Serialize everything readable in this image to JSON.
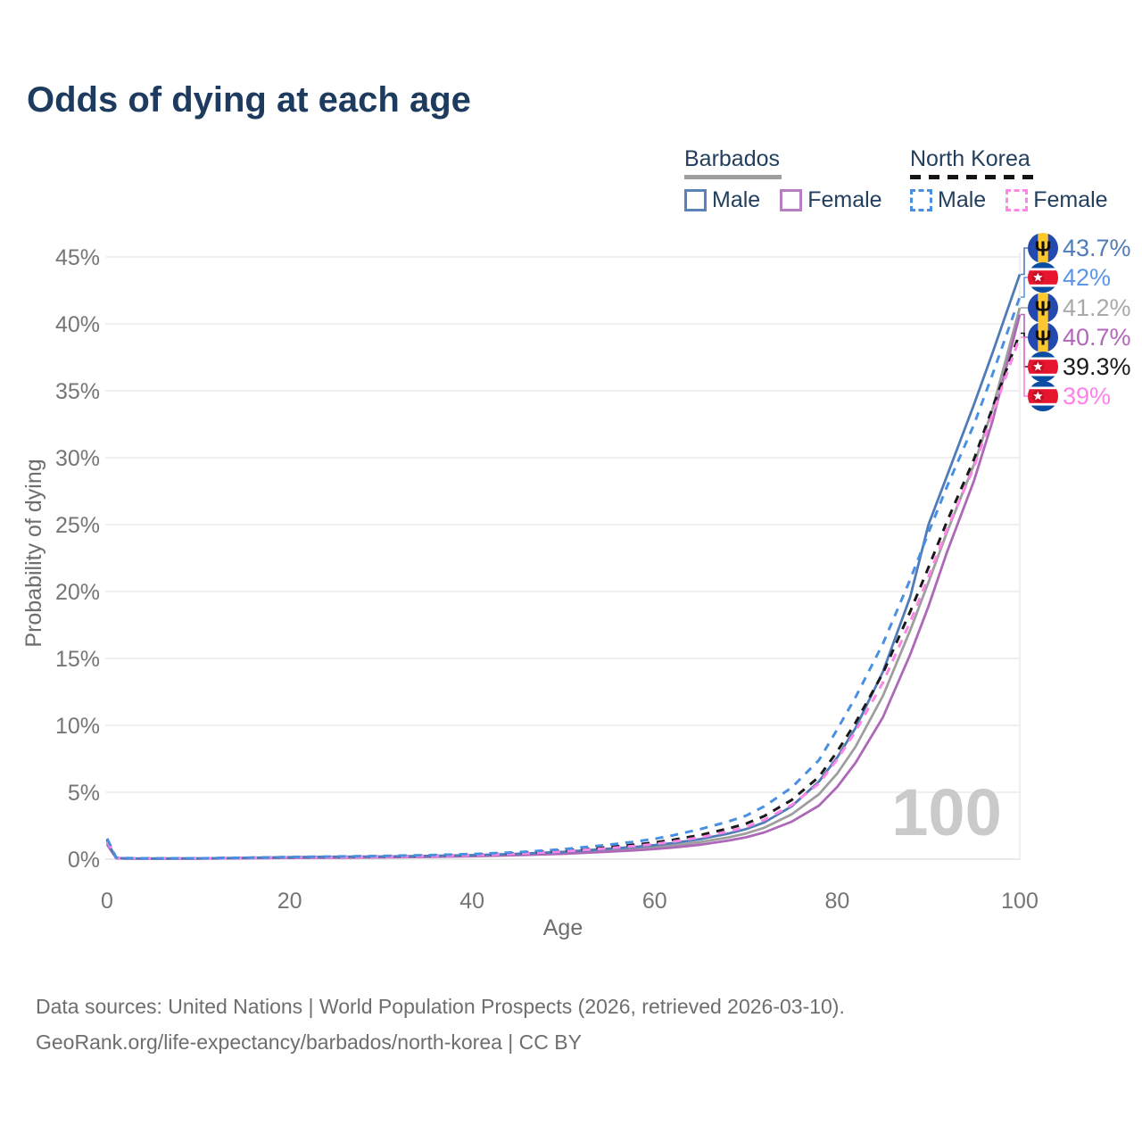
{
  "title": "Odds of dying at each age",
  "watermark": "100",
  "legend": {
    "groups": [
      {
        "label": "Barbados",
        "line_style": "solid",
        "underline_color": "#9e9e9e",
        "items": [
          {
            "label": "Male",
            "color": "#4f7cb8"
          },
          {
            "label": "Female",
            "color": "#b273bc"
          }
        ]
      },
      {
        "label": "North Korea",
        "line_style": "dashed",
        "underline_color": "#141414",
        "items": [
          {
            "label": "Male",
            "color": "#4a90e2"
          },
          {
            "label": "Female",
            "color": "#ff85e6"
          }
        ]
      }
    ]
  },
  "footer": {
    "line1": "Data sources: United Nations | World Population Prospects (2026, retrieved 2026-03-10).",
    "line2": "GeoRank.org/life-expectancy/barbados/north-korea | CC BY"
  },
  "chart_data": {
    "type": "line",
    "title": "Odds of dying at each age",
    "xlabel": "Age",
    "ylabel": "Probability of dying",
    "xlim": [
      0,
      100
    ],
    "ylim_percent": [
      0,
      46
    ],
    "grid": "horizontal",
    "legend_position": "top-right",
    "x_tick_values": [
      0,
      20,
      40,
      60,
      80,
      100
    ],
    "y_tick_labels": [
      "0%",
      "5%",
      "10%",
      "15%",
      "20%",
      "25%",
      "30%",
      "35%",
      "40%",
      "45%"
    ],
    "x": [
      0,
      1,
      2,
      5,
      10,
      15,
      20,
      25,
      30,
      35,
      40,
      45,
      50,
      55,
      58,
      60,
      62,
      65,
      68,
      70,
      72,
      75,
      78,
      80,
      82,
      85,
      88,
      90,
      92,
      95,
      97,
      100
    ],
    "series": [
      {
        "name": "Barbados Male",
        "country": "Barbados",
        "sex": "male",
        "color": "#4f7cb8",
        "dash": false,
        "end_label": "43.7%",
        "label_color": "#4f7cb8",
        "flag": "barbados",
        "values": [
          1.3,
          0.09,
          0.06,
          0.05,
          0.06,
          0.1,
          0.15,
          0.18,
          0.2,
          0.24,
          0.3,
          0.4,
          0.55,
          0.78,
          0.92,
          1.05,
          1.2,
          1.5,
          1.9,
          2.25,
          2.75,
          3.95,
          5.8,
          7.6,
          9.8,
          14.0,
          19.6,
          25.0,
          28.6,
          34.0,
          37.8,
          43.7
        ]
      },
      {
        "name": "North Korea Male",
        "country": "North Korea",
        "sex": "male",
        "color": "#4a90e2",
        "dash": true,
        "end_label": "42%",
        "label_color": "#5b95e8",
        "flag": "north-korea",
        "values": [
          1.55,
          0.12,
          0.08,
          0.06,
          0.07,
          0.11,
          0.16,
          0.2,
          0.24,
          0.3,
          0.38,
          0.52,
          0.75,
          1.08,
          1.32,
          1.52,
          1.78,
          2.25,
          2.8,
          3.25,
          3.95,
          5.35,
          7.4,
          9.7,
          12.1,
          16.1,
          20.9,
          24.4,
          27.8,
          32.5,
          36.2,
          42.0
        ]
      },
      {
        "name": "Barbados Both sexes",
        "country": "Barbados",
        "sex": "both",
        "color": "#9e9e9e",
        "dash": false,
        "end_label": "41.2%",
        "label_color": "#a9a9a9",
        "flag": "barbados",
        "values": [
          1.2,
          0.08,
          0.055,
          0.045,
          0.05,
          0.08,
          0.12,
          0.14,
          0.16,
          0.2,
          0.26,
          0.35,
          0.47,
          0.66,
          0.79,
          0.9,
          1.02,
          1.28,
          1.62,
          1.92,
          2.35,
          3.35,
          4.85,
          6.4,
          8.4,
          12.2,
          17.1,
          20.7,
          24.4,
          29.5,
          33.6,
          41.2
        ]
      },
      {
        "name": "Barbados Female",
        "country": "Barbados",
        "sex": "female",
        "color": "#ad68b8",
        "dash": false,
        "end_label": "40.7%",
        "label_color": "#b465bc",
        "flag": "barbados",
        "values": [
          1.1,
          0.07,
          0.05,
          0.04,
          0.045,
          0.07,
          0.09,
          0.11,
          0.13,
          0.17,
          0.22,
          0.3,
          0.4,
          0.56,
          0.67,
          0.76,
          0.87,
          1.08,
          1.38,
          1.63,
          2.0,
          2.8,
          4.0,
          5.4,
          7.2,
          10.6,
          15.3,
          18.9,
          22.9,
          28.3,
          32.7,
          40.7
        ]
      },
      {
        "name": "North Korea Both sexes",
        "country": "North Korea",
        "sex": "both",
        "color": "#1a1a1a",
        "dash": true,
        "end_label": "39.3%",
        "label_color": "#1a1a1a",
        "flag": "north-korea",
        "values": [
          1.45,
          0.11,
          0.07,
          0.055,
          0.06,
          0.095,
          0.14,
          0.17,
          0.2,
          0.26,
          0.33,
          0.45,
          0.64,
          0.9,
          1.09,
          1.25,
          1.45,
          1.8,
          2.28,
          2.65,
          3.22,
          4.42,
          6.15,
          8.05,
          10.2,
          13.9,
          18.5,
          21.8,
          25.2,
          29.9,
          33.7,
          39.3
        ]
      },
      {
        "name": "North Korea Female",
        "country": "North Korea",
        "sex": "female",
        "color": "#ff85e6",
        "dash": true,
        "end_label": "39%",
        "label_color": "#ff80e8",
        "flag": "north-korea",
        "values": [
          1.35,
          0.1,
          0.065,
          0.05,
          0.055,
          0.085,
          0.13,
          0.155,
          0.18,
          0.235,
          0.3,
          0.41,
          0.58,
          0.82,
          0.99,
          1.13,
          1.31,
          1.63,
          2.06,
          2.4,
          2.93,
          4.05,
          5.65,
          7.45,
          9.55,
          13.2,
          17.75,
          21.1,
          24.6,
          29.3,
          33.2,
          39.0
        ]
      }
    ]
  }
}
